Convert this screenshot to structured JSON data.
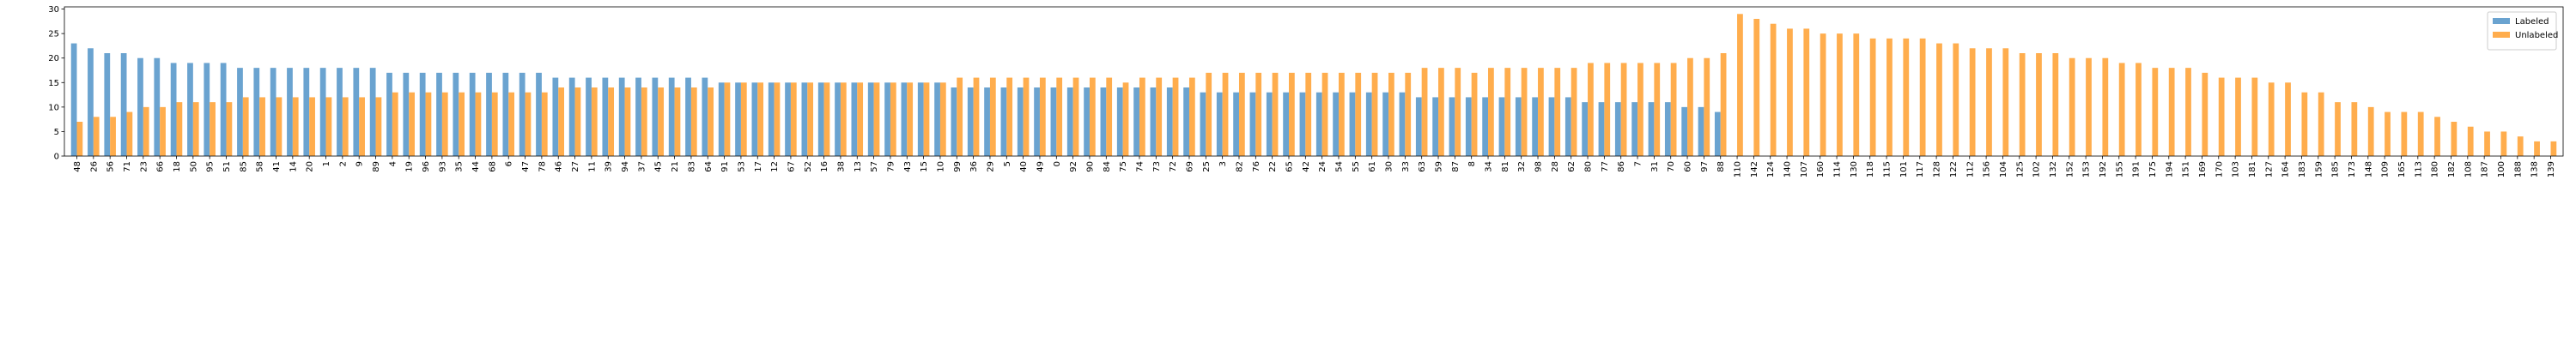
{
  "chart_data": {
    "type": "bar",
    "categories": [
      "48",
      "26",
      "56",
      "71",
      "23",
      "66",
      "18",
      "50",
      "95",
      "51",
      "85",
      "58",
      "41",
      "14",
      "20",
      "1",
      "2",
      "9",
      "89",
      "4",
      "19",
      "96",
      "93",
      "35",
      "44",
      "68",
      "6",
      "47",
      "78",
      "46",
      "27",
      "11",
      "39",
      "94",
      "37",
      "45",
      "21",
      "83",
      "64",
      "91",
      "53",
      "17",
      "12",
      "67",
      "52",
      "16",
      "38",
      "13",
      "57",
      "79",
      "43",
      "15",
      "10",
      "99",
      "36",
      "29",
      "5",
      "40",
      "49",
      "0",
      "92",
      "90",
      "84",
      "75",
      "74",
      "73",
      "72",
      "69",
      "25",
      "3",
      "82",
      "76",
      "22",
      "65",
      "42",
      "24",
      "54",
      "55",
      "61",
      "30",
      "33",
      "63",
      "59",
      "87",
      "8",
      "34",
      "81",
      "32",
      "98",
      "28",
      "62",
      "80",
      "77",
      "86",
      "7",
      "31",
      "70",
      "60",
      "97",
      "88",
      "110",
      "142",
      "124",
      "140",
      "107",
      "160",
      "114",
      "130",
      "118",
      "115",
      "101",
      "117",
      "128",
      "122",
      "112",
      "156",
      "104",
      "125",
      "102",
      "132",
      "152",
      "153",
      "192",
      "155",
      "191",
      "175",
      "194",
      "151",
      "169",
      "170",
      "103",
      "181",
      "127",
      "164",
      "183",
      "159",
      "185",
      "173",
      "148",
      "109",
      "165",
      "113",
      "180",
      "182",
      "108",
      "187",
      "100",
      "188",
      "138",
      "139"
    ],
    "series": [
      {
        "name": "Labeled",
        "color": "#6aa3d0",
        "values": [
          23,
          22,
          21,
          21,
          20,
          20,
          19,
          19,
          19,
          19,
          18,
          18,
          18,
          18,
          18,
          18,
          18,
          18,
          18,
          17,
          17,
          17,
          17,
          17,
          17,
          17,
          17,
          17,
          17,
          16,
          16,
          16,
          16,
          16,
          16,
          16,
          16,
          16,
          16,
          15,
          15,
          15,
          15,
          15,
          15,
          15,
          15,
          15,
          15,
          15,
          15,
          15,
          15,
          14,
          14,
          14,
          14,
          14,
          14,
          14,
          14,
          14,
          14,
          14,
          14,
          14,
          14,
          14,
          13,
          13,
          13,
          13,
          13,
          13,
          13,
          13,
          13,
          13,
          13,
          13,
          13,
          12,
          12,
          12,
          12,
          12,
          12,
          12,
          12,
          12,
          12,
          11,
          11,
          11,
          11,
          11,
          11,
          10,
          10,
          9,
          null,
          null,
          null,
          null,
          null,
          null,
          null,
          null,
          null,
          null,
          null,
          null,
          null,
          null,
          null,
          null,
          null,
          null,
          null,
          null,
          null,
          null,
          null,
          null,
          null,
          null,
          null,
          null,
          null,
          null,
          null,
          null,
          null,
          null,
          null,
          null,
          null,
          null,
          null,
          null,
          null,
          null,
          null,
          null,
          null,
          null,
          null,
          null,
          null,
          null
        ]
      },
      {
        "name": "Unlabeled",
        "color": "#ffad4d",
        "values": [
          7,
          8,
          8,
          9,
          10,
          10,
          11,
          11,
          11,
          11,
          12,
          12,
          12,
          12,
          12,
          12,
          12,
          12,
          12,
          13,
          13,
          13,
          13,
          13,
          13,
          13,
          13,
          13,
          13,
          14,
          14,
          14,
          14,
          14,
          14,
          14,
          14,
          14,
          14,
          15,
          15,
          15,
          15,
          15,
          15,
          15,
          15,
          15,
          15,
          15,
          15,
          15,
          15,
          16,
          16,
          16,
          16,
          16,
          16,
          16,
          16,
          16,
          16,
          15,
          16,
          16,
          16,
          16,
          17,
          17,
          17,
          17,
          17,
          17,
          17,
          17,
          17,
          17,
          17,
          17,
          17,
          18,
          18,
          18,
          17,
          18,
          18,
          18,
          18,
          18,
          18,
          19,
          19,
          19,
          19,
          19,
          19,
          20,
          20,
          21,
          29,
          28,
          27,
          26,
          26,
          25,
          25,
          25,
          24,
          24,
          24,
          24,
          23,
          23,
          22,
          22,
          22,
          21,
          21,
          21,
          20,
          20,
          20,
          19,
          19,
          18,
          18,
          18,
          17,
          16,
          16,
          16,
          15,
          15,
          13,
          13,
          11,
          11,
          10,
          9,
          9,
          9,
          8,
          7,
          6,
          5,
          5,
          4,
          3,
          3
        ]
      }
    ],
    "ylim": [
      0,
      30.45
    ],
    "yticks": [
      0,
      5,
      10,
      15,
      20,
      25,
      30
    ],
    "legend": "upper right"
  }
}
